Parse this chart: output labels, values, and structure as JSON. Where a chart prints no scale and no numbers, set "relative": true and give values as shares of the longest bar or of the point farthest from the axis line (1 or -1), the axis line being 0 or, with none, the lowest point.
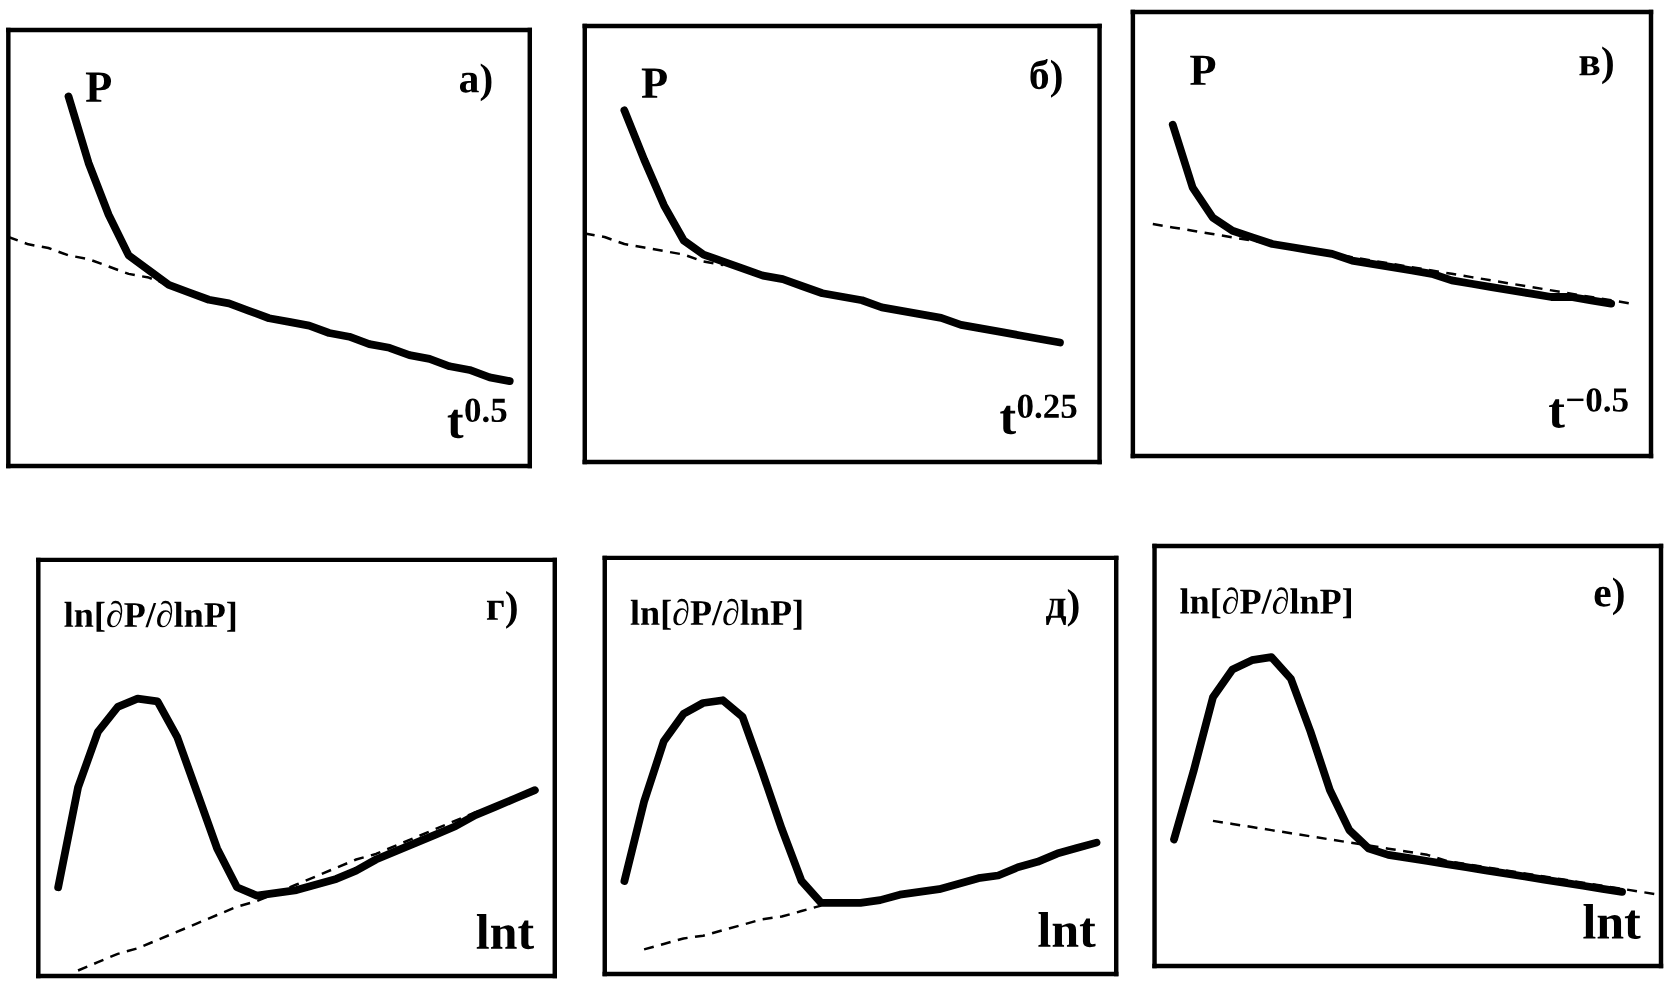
{
  "chart_data": [
    {
      "type": "line",
      "title": "а)",
      "xlabel": "t$^{0.5}$",
      "ylabel": "P",
      "relative": true,
      "categories": [
        null,
        null,
        null,
        null,
        null,
        null,
        null,
        null,
        null,
        null,
        null,
        null,
        null,
        null,
        null,
        null,
        null,
        null,
        null,
        null,
        null,
        null,
        null,
        null,
        null,
        null,
        null
      ],
      "series": [
        {
          "color": "#000000",
          "line_style": "solid",
          "values": [
            null,
            null,
            null,
            1.0,
            0.82,
            0.68,
            0.57,
            0.53,
            0.49,
            0.47,
            0.45,
            0.44,
            0.42,
            0.4,
            0.39,
            0.38,
            0.36,
            0.35,
            0.33,
            0.32,
            0.3,
            0.29,
            0.27,
            0.26,
            0.24,
            0.23,
            null
          ]
        },
        {
          "color": "#000000",
          "line_style": "dashed",
          "values": [
            0.62,
            0.6,
            0.59,
            0.57,
            0.56,
            0.54,
            0.52,
            0.51,
            0.49,
            null,
            null,
            null,
            null,
            null,
            null,
            null,
            null,
            null,
            null,
            null,
            null,
            null,
            null,
            null,
            null,
            null,
            null
          ]
        }
      ]
    },
    {
      "type": "line",
      "title": "б)",
      "xlabel": "t$^{0.25}$",
      "ylabel": "P",
      "relative": true,
      "categories": [
        null,
        null,
        null,
        null,
        null,
        null,
        null,
        null,
        null,
        null,
        null,
        null,
        null,
        null,
        null,
        null,
        null,
        null,
        null,
        null,
        null,
        null,
        null,
        null,
        null,
        null,
        null
      ],
      "series": [
        {
          "color": "#000000",
          "line_style": "solid",
          "values": [
            null,
            null,
            1.0,
            0.86,
            0.73,
            0.63,
            0.59,
            0.57,
            0.55,
            0.53,
            0.52,
            0.5,
            0.48,
            0.47,
            0.46,
            0.44,
            0.43,
            0.42,
            0.41,
            0.39,
            0.38,
            0.37,
            0.36,
            0.35,
            0.34,
            null,
            null
          ]
        },
        {
          "color": "#000000",
          "line_style": "dashed",
          "values": [
            0.65,
            0.64,
            0.62,
            0.61,
            0.6,
            0.59,
            0.57,
            0.56,
            null,
            null,
            null,
            null,
            null,
            null,
            null,
            null,
            null,
            null,
            null,
            null,
            null,
            null,
            null,
            null,
            null,
            null,
            null
          ]
        }
      ]
    },
    {
      "type": "line",
      "title": "в)",
      "xlabel": "t$^{−0.5}$",
      "ylabel": "P",
      "relative": true,
      "categories": [
        null,
        null,
        null,
        null,
        null,
        null,
        null,
        null,
        null,
        null,
        null,
        null,
        null,
        null,
        null,
        null,
        null,
        null,
        null,
        null,
        null,
        null,
        null,
        null,
        null,
        null,
        null
      ],
      "series": [
        {
          "color": "#000000",
          "line_style": "solid",
          "values": [
            null,
            null,
            1.0,
            0.81,
            0.72,
            0.68,
            0.66,
            0.64,
            0.63,
            0.62,
            0.61,
            0.59,
            0.58,
            0.57,
            0.56,
            0.55,
            0.53,
            0.52,
            0.51,
            0.5,
            0.49,
            0.48,
            0.48,
            0.47,
            0.46,
            null,
            null
          ]
        },
        {
          "color": "#000000",
          "line_style": "dashed",
          "values": [
            null,
            0.7,
            0.69,
            0.68,
            0.67,
            0.66,
            0.65,
            0.64,
            0.63,
            0.62,
            0.61,
            0.6,
            0.59,
            0.58,
            0.57,
            0.56,
            0.55,
            0.54,
            0.53,
            0.52,
            0.51,
            0.5,
            0.49,
            0.48,
            0.47,
            0.46,
            null
          ]
        }
      ]
    },
    {
      "type": "line",
      "title": "г)",
      "xlabel": "lnt",
      "ylabel": "ln[∂P/∂lnP]",
      "relative": true,
      "categories": [
        null,
        null,
        null,
        null,
        null,
        null,
        null,
        null,
        null,
        null,
        null,
        null,
        null,
        null,
        null,
        null,
        null,
        null,
        null,
        null,
        null,
        null,
        null,
        null,
        null,
        null,
        null
      ],
      "series": [
        {
          "color": "#000000",
          "line_style": "solid",
          "values": [
            null,
            0.32,
            0.68,
            0.88,
            0.97,
            1.0,
            0.99,
            0.86,
            0.66,
            0.46,
            0.32,
            0.29,
            0.3,
            0.31,
            0.33,
            0.35,
            0.38,
            0.42,
            0.45,
            0.48,
            0.51,
            0.54,
            0.58,
            0.61,
            0.64,
            0.67,
            null
          ]
        },
        {
          "color": "#000000",
          "line_style": "dashed",
          "values": [
            null,
            null,
            0.02,
            0.05,
            0.08,
            0.1,
            0.13,
            0.16,
            0.19,
            0.22,
            0.25,
            0.27,
            0.3,
            0.33,
            0.36,
            0.39,
            0.42,
            0.44,
            0.47,
            0.5,
            0.53,
            0.56,
            0.59,
            0.61,
            0.64,
            0.67,
            null
          ]
        }
      ]
    },
    {
      "type": "line",
      "title": "д)",
      "xlabel": "lnt",
      "ylabel": "ln[∂P/∂lnP]",
      "relative": true,
      "categories": [
        null,
        null,
        null,
        null,
        null,
        null,
        null,
        null,
        null,
        null,
        null,
        null,
        null,
        null,
        null,
        null,
        null,
        null,
        null,
        null,
        null,
        null,
        null,
        null,
        null,
        null,
        null
      ],
      "series": [
        {
          "color": "#000000",
          "line_style": "solid",
          "values": [
            null,
            0.34,
            0.63,
            0.85,
            0.95,
            0.99,
            1.0,
            0.94,
            0.74,
            0.53,
            0.34,
            0.26,
            0.26,
            0.26,
            0.27,
            0.29,
            0.3,
            0.31,
            0.33,
            0.35,
            0.36,
            0.39,
            0.41,
            0.44,
            0.46,
            0.48,
            null
          ]
        },
        {
          "color": "#000000",
          "line_style": "dashed",
          "values": [
            null,
            null,
            0.09,
            0.11,
            0.13,
            0.14,
            0.16,
            0.18,
            0.2,
            0.21,
            0.23,
            0.25,
            null,
            null,
            null,
            null,
            null,
            null,
            null,
            null,
            null,
            null,
            null,
            null,
            null,
            null,
            null
          ]
        }
      ]
    },
    {
      "type": "line",
      "title": "е)",
      "xlabel": "lnt",
      "ylabel": "ln[∂P/∂lnP]",
      "relative": true,
      "categories": [
        null,
        null,
        null,
        null,
        null,
        null,
        null,
        null,
        null,
        null,
        null,
        null,
        null,
        null,
        null,
        null,
        null,
        null,
        null,
        null,
        null,
        null,
        null,
        null,
        null,
        null,
        null
      ],
      "series": [
        {
          "color": "#000000",
          "line_style": "solid",
          "values": [
            null,
            0.41,
            0.63,
            0.87,
            0.96,
            0.99,
            1.0,
            0.93,
            0.76,
            0.57,
            0.44,
            0.38,
            0.36,
            0.35,
            0.34,
            0.33,
            0.32,
            0.31,
            0.3,
            0.29,
            0.28,
            0.27,
            0.26,
            0.25,
            0.24,
            null,
            null
          ]
        },
        {
          "color": "#000000",
          "line_style": "dashed",
          "values": [
            null,
            null,
            null,
            0.47,
            0.46,
            0.45,
            0.44,
            0.43,
            0.42,
            0.41,
            0.4,
            0.39,
            0.38,
            0.37,
            0.36,
            0.34,
            0.33,
            0.32,
            0.31,
            0.3,
            0.29,
            0.28,
            0.27,
            0.26,
            0.25,
            0.24,
            0.23
          ]
        }
      ]
    }
  ]
}
